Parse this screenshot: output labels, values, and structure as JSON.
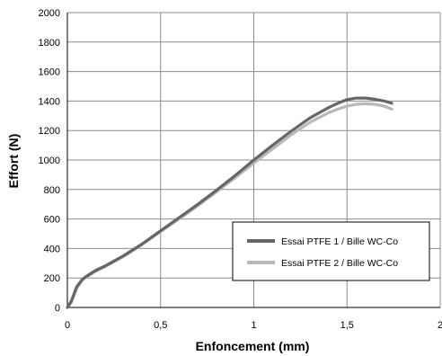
{
  "chart_data": {
    "type": "line",
    "title": "",
    "xlabel": "Enfoncement (mm)",
    "ylabel": "Effort (N)",
    "xlim": [
      0,
      2
    ],
    "ylim": [
      0,
      2000
    ],
    "x_ticks": [
      0,
      0.5,
      1,
      1.5,
      2
    ],
    "x_tick_labels": [
      "0",
      "0,5",
      "1",
      "1,5",
      "2"
    ],
    "y_ticks": [
      0,
      200,
      400,
      600,
      800,
      1000,
      1200,
      1400,
      1600,
      1800,
      2000
    ],
    "y_tick_labels": [
      "0",
      "200",
      "400",
      "600",
      "800",
      "1000",
      "1200",
      "1400",
      "1600",
      "1800",
      "2000"
    ],
    "grid": true,
    "legend_position": "bottom-right",
    "series": [
      {
        "name": "Essai PTFE 1 / Bille WC-Co",
        "color": "#666666",
        "x": [
          0.0,
          0.02,
          0.05,
          0.08,
          0.1,
          0.15,
          0.2,
          0.3,
          0.4,
          0.5,
          0.6,
          0.7,
          0.8,
          0.9,
          1.0,
          1.1,
          1.2,
          1.3,
          1.4,
          1.45,
          1.5,
          1.55,
          1.6,
          1.65,
          1.7,
          1.74
        ],
        "y": [
          0,
          40,
          140,
          190,
          210,
          250,
          280,
          350,
          430,
          520,
          610,
          700,
          795,
          895,
          1000,
          1100,
          1195,
          1285,
          1355,
          1385,
          1410,
          1420,
          1420,
          1412,
          1400,
          1385
        ]
      },
      {
        "name": "Essai PTFE 2 / Bille WC-Co",
        "color": "#b8b8b8",
        "x": [
          0.0,
          0.02,
          0.05,
          0.08,
          0.1,
          0.15,
          0.2,
          0.3,
          0.4,
          0.5,
          0.6,
          0.7,
          0.8,
          0.9,
          1.0,
          1.1,
          1.2,
          1.3,
          1.4,
          1.45,
          1.5,
          1.55,
          1.6,
          1.65,
          1.7,
          1.74
        ],
        "y": [
          0,
          35,
          130,
          185,
          205,
          245,
          275,
          345,
          425,
          515,
          600,
          690,
          785,
          880,
          980,
          1075,
          1170,
          1255,
          1320,
          1345,
          1365,
          1378,
          1382,
          1378,
          1365,
          1345
        ]
      }
    ]
  }
}
